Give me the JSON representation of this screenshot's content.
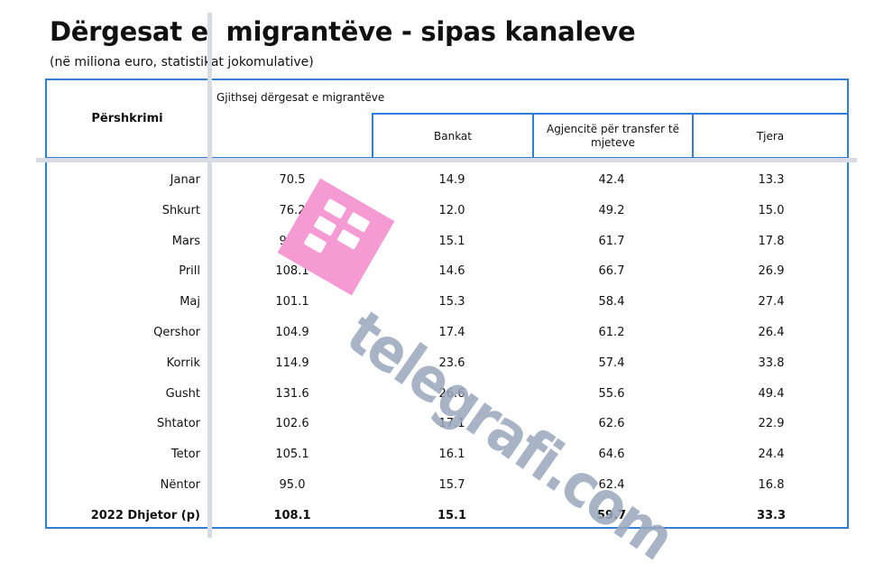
{
  "title": "Dërgesat e  migrantëve - sipas kanaleve",
  "subtitle": "(në miliona euro, statistikat jokomulative)",
  "header": {
    "col_description": "Përshkrimi",
    "group": "Gjithsej dërgesat e migrantëve",
    "col_banks": "Bankat",
    "col_agencies": "Agjencitë për transfer të mjeteve",
    "col_other": "Tjera"
  },
  "rows": [
    {
      "month": "Janar",
      "total": "70.5",
      "banks": "14.9",
      "agencies": "42.4",
      "other": "13.3"
    },
    {
      "month": "Shkurt",
      "total": "76.2",
      "banks": "12.0",
      "agencies": "49.2",
      "other": "15.0"
    },
    {
      "month": "Mars",
      "total": "94.7",
      "banks": "15.1",
      "agencies": "61.7",
      "other": "17.8"
    },
    {
      "month": "Prill",
      "total": "108.1",
      "banks": "14.6",
      "agencies": "66.7",
      "other": "26.9"
    },
    {
      "month": "Maj",
      "total": "101.1",
      "banks": "15.3",
      "agencies": "58.4",
      "other": "27.4"
    },
    {
      "month": "Qershor",
      "total": "104.9",
      "banks": "17.4",
      "agencies": "61.2",
      "other": "26.4"
    },
    {
      "month": "Korrik",
      "total": "114.9",
      "banks": "23.6",
      "agencies": "57.4",
      "other": "33.8"
    },
    {
      "month": "Gusht",
      "total": "131.6",
      "banks": "26.6",
      "agencies": "55.6",
      "other": "49.4"
    },
    {
      "month": "Shtator",
      "total": "102.6",
      "banks": "17.1",
      "agencies": "62.6",
      "other": "22.9"
    },
    {
      "month": "Tetor",
      "total": "105.1",
      "banks": "16.1",
      "agencies": "64.6",
      "other": "24.4"
    },
    {
      "month": "Nëntor",
      "total": "95.0",
      "banks": "15.7",
      "agencies": "62.4",
      "other": "16.8"
    },
    {
      "month": "2022 Dhjetor (p)",
      "total": "108.1",
      "banks": "15.1",
      "agencies": "59.7",
      "other": "33.3",
      "bold": true
    }
  ],
  "watermark": {
    "text": "telegrafi.com",
    "logo_color": "#f59ad2"
  },
  "colors": {
    "border": "#2f7fd6"
  }
}
